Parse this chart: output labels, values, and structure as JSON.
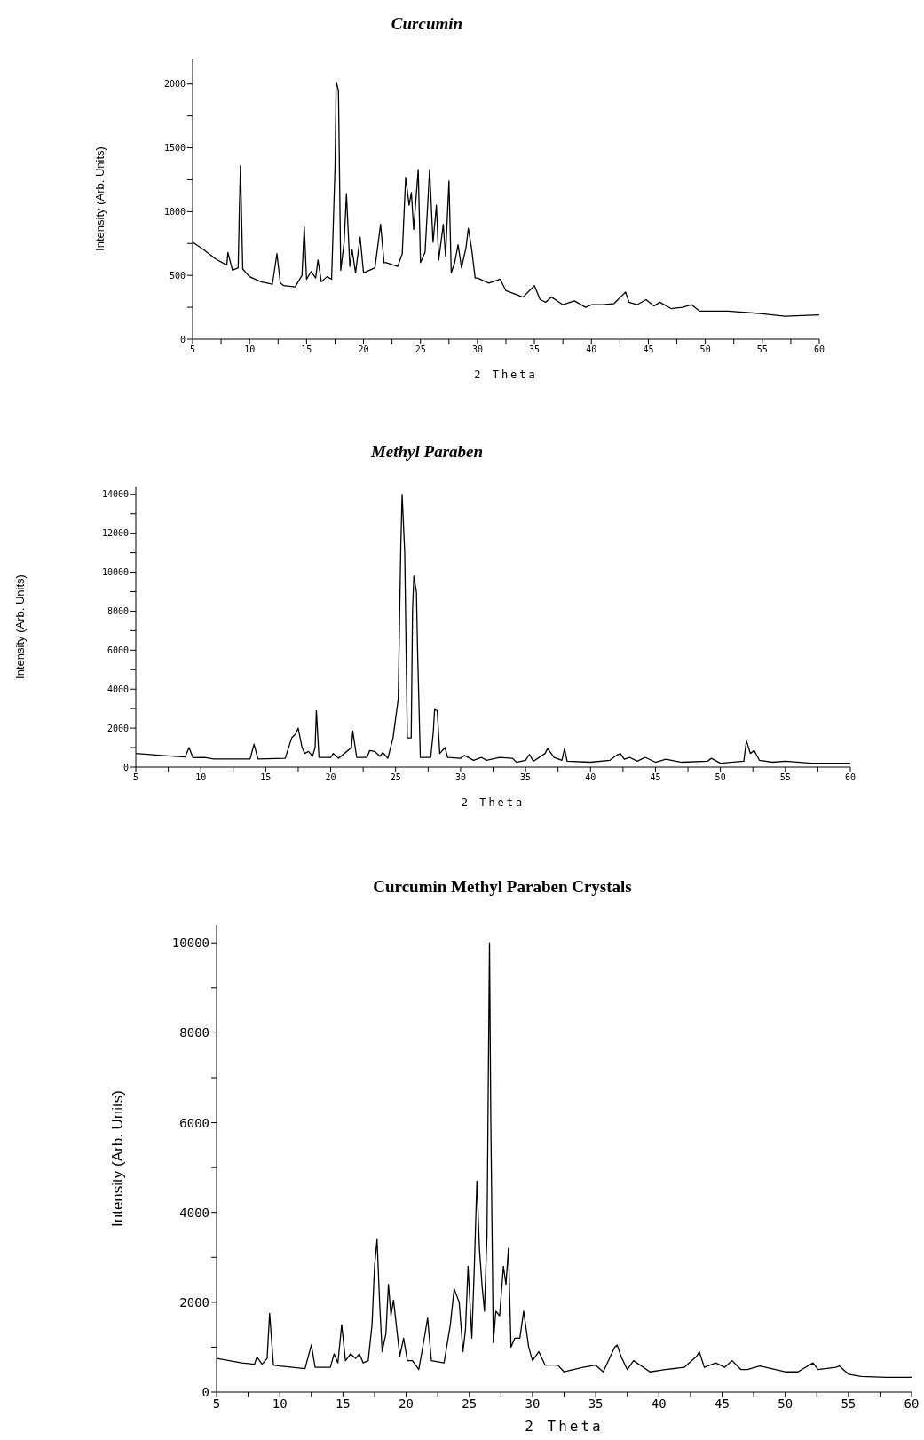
{
  "chart_data": [
    {
      "type": "line",
      "title": "Curcumin",
      "xlabel": "2 Theta",
      "ylabel": "Intensity (Arb. Units)",
      "xlim": [
        5,
        60
      ],
      "ylim": [
        0,
        2200
      ],
      "xticks": [
        5,
        {
          "value": 7.5,
          "label": null
        },
        10,
        {
          "value": 12.5,
          "label": null
        },
        15,
        {
          "value": 17.5,
          "label": null
        },
        20,
        {
          "value": 22.5,
          "label": null
        },
        25,
        {
          "value": 27.5,
          "label": null
        },
        30,
        {
          "value": 32.5,
          "label": null
        },
        35,
        {
          "value": 37.5,
          "label": null
        },
        40,
        {
          "value": 42.5,
          "label": null
        },
        45,
        {
          "value": 47.5,
          "label": null
        },
        50,
        {
          "value": 52.5,
          "label": null
        },
        55,
        {
          "value": 57.5,
          "label": null
        },
        60
      ],
      "yticks": [
        0,
        {
          "value": 250,
          "label": null
        },
        500,
        {
          "value": 750,
          "label": null
        },
        1000,
        {
          "value": 1250,
          "label": null
        },
        1500,
        {
          "value": 1750,
          "label": null
        },
        2000
      ],
      "marker": "none",
      "line_style": "solid",
      "series": [
        {
          "color": "#000000",
          "x": [
            5,
            6,
            7,
            8,
            8.1,
            8.5,
            9,
            9.1,
            9.2,
            9.4,
            10,
            11,
            12,
            12.4,
            12.7,
            13,
            14,
            14.6,
            14.8,
            15,
            15.4,
            15.8,
            16,
            16.3,
            16.8,
            17.2,
            17.5,
            17.6,
            17.8,
            18,
            18.3,
            18.5,
            18.8,
            19,
            19.3,
            19.7,
            20,
            21,
            21.5,
            21.8,
            22,
            23,
            23.4,
            23.7,
            24,
            24.2,
            24.4,
            24.8,
            25,
            25.4,
            25.8,
            26.1,
            26.4,
            26.6,
            27,
            27.2,
            27.5,
            27.7,
            28,
            28.3,
            28.6,
            29,
            29.2,
            29.5,
            29.8,
            30,
            31,
            32,
            32.5,
            34,
            35,
            35.5,
            36,
            36.5,
            37.5,
            38.5,
            39.5,
            40,
            41,
            42,
            43,
            43.3,
            44,
            44.8,
            45.5,
            46,
            47,
            48,
            48.8,
            49.5,
            52,
            55,
            57,
            60
          ],
          "values": [
            760,
            700,
            630,
            580,
            680,
            540,
            560,
            1000,
            1360,
            550,
            490,
            450,
            430,
            670,
            440,
            420,
            410,
            500,
            880,
            470,
            530,
            480,
            620,
            450,
            490,
            470,
            1350,
            2020,
            1950,
            540,
            760,
            1140,
            570,
            700,
            520,
            800,
            520,
            560,
            900,
            600,
            600,
            570,
            670,
            1270,
            1050,
            1150,
            860,
            1330,
            600,
            680,
            1330,
            760,
            1050,
            620,
            900,
            650,
            1240,
            520,
            600,
            740,
            560,
            720,
            870,
            700,
            480,
            480,
            440,
            470,
            380,
            330,
            420,
            310,
            290,
            330,
            270,
            300,
            250,
            270,
            270,
            280,
            370,
            290,
            270,
            310,
            260,
            290,
            240,
            250,
            270,
            220,
            220,
            200,
            180,
            190
          ]
        }
      ]
    },
    {
      "type": "line",
      "title": "Methyl Paraben",
      "xlabel": "2 Theta",
      "ylabel": "Intensity (Arb. Units)",
      "xlim": [
        5,
        60
      ],
      "ylim": [
        0,
        14400
      ],
      "xticks": [
        5,
        {
          "value": 7.5,
          "label": null
        },
        10,
        {
          "value": 12.5,
          "label": null
        },
        15,
        {
          "value": 17.5,
          "label": null
        },
        20,
        {
          "value": 22.5,
          "label": null
        },
        25,
        {
          "value": 27.5,
          "label": null
        },
        30,
        {
          "value": 32.5,
          "label": null
        },
        35,
        {
          "value": 37.5,
          "label": null
        },
        40,
        {
          "value": 42.5,
          "label": null
        },
        45,
        {
          "value": 47.5,
          "label": null
        },
        50,
        {
          "value": 52.5,
          "label": null
        },
        55,
        {
          "value": 57.5,
          "label": null
        },
        60
      ],
      "yticks": [
        0,
        {
          "value": 1000,
          "label": null
        },
        2000,
        {
          "value": 3000,
          "label": null
        },
        4000,
        {
          "value": 5000,
          "label": null
        },
        6000,
        {
          "value": 7000,
          "label": null
        },
        8000,
        {
          "value": 9000,
          "label": null
        },
        10000,
        {
          "value": 11000,
          "label": null
        },
        12000,
        {
          "value": 13000,
          "label": null
        },
        14000
      ],
      "marker": "none",
      "line_style": "solid",
      "series": [
        {
          "color": "#000000",
          "x": [
            5,
            7,
            8.8,
            9.1,
            9.4,
            10.3,
            11,
            13.8,
            14.1,
            14.4,
            16.5,
            17,
            17.3,
            17.5,
            17.8,
            18,
            18.3,
            18.6,
            18.8,
            18.9,
            19.1,
            20,
            20.2,
            20.6,
            21.6,
            21.7,
            22,
            22.8,
            23,
            23.4,
            23.8,
            24,
            24.4,
            24.8,
            25.2,
            25.4,
            25.5,
            25.7,
            25.9,
            26.2,
            26.3,
            26.4,
            26.6,
            26.7,
            26.9,
            27.7,
            27.9,
            28,
            28.2,
            28.4,
            28.8,
            29,
            30,
            30.3,
            31,
            31.6,
            32,
            33,
            34,
            34.3,
            35,
            35.3,
            35.6,
            36.5,
            36.7,
            37.2,
            37.8,
            38,
            38.2,
            40,
            41.5,
            42,
            42.3,
            42.6,
            43,
            43.6,
            44.2,
            45,
            45.8,
            47,
            49,
            49.3,
            50,
            51.8,
            52,
            52.3,
            52.6,
            53,
            54,
            55,
            57,
            60
          ],
          "values": [
            700,
            600,
            520,
            1000,
            480,
            500,
            420,
            420,
            1180,
            420,
            450,
            1500,
            1700,
            2000,
            1000,
            700,
            800,
            550,
            1000,
            2900,
            500,
            500,
            700,
            450,
            1000,
            1850,
            500,
            500,
            850,
            800,
            550,
            750,
            450,
            1500,
            3500,
            11400,
            14000,
            11000,
            1500,
            1500,
            8000,
            9800,
            9000,
            5700,
            500,
            500,
            1800,
            2950,
            2900,
            700,
            1000,
            500,
            450,
            600,
            350,
            500,
            350,
            500,
            450,
            250,
            350,
            650,
            300,
            700,
            950,
            500,
            350,
            950,
            300,
            250,
            350,
            600,
            700,
            400,
            500,
            300,
            500,
            250,
            400,
            250,
            300,
            450,
            200,
            300,
            1350,
            700,
            850,
            350,
            250,
            300,
            200,
            200
          ]
        }
      ]
    },
    {
      "type": "line",
      "title": "Curcumin Methyl Paraben Crystals",
      "xlabel": "2 Theta",
      "ylabel": "Intensity (Arb. Units)",
      "xlim": [
        5,
        60
      ],
      "ylim": [
        0,
        10400
      ],
      "xticks": [
        5,
        {
          "value": 7.5,
          "label": null
        },
        10,
        {
          "value": 12.5,
          "label": null
        },
        15,
        {
          "value": 17.5,
          "label": null
        },
        20,
        {
          "value": 22.5,
          "label": null
        },
        25,
        {
          "value": 27.5,
          "label": null
        },
        30,
        {
          "value": 32.5,
          "label": null
        },
        35,
        {
          "value": 37.5,
          "label": null
        },
        40,
        {
          "value": 42.5,
          "label": null
        },
        45,
        {
          "value": 47.5,
          "label": null
        },
        50,
        {
          "value": 52.5,
          "label": null
        },
        55,
        {
          "value": 57.5,
          "label": null
        },
        60
      ],
      "yticks": [
        0,
        {
          "value": 1000,
          "label": null
        },
        2000,
        {
          "value": 3000,
          "label": null
        },
        4000,
        {
          "value": 5000,
          "label": null
        },
        6000,
        {
          "value": 7000,
          "label": null
        },
        8000,
        {
          "value": 9000,
          "label": null
        },
        10000
      ],
      "marker": "none",
      "line_style": "solid",
      "series": [
        {
          "color": "#000000",
          "x": [
            5,
            7,
            8,
            8.2,
            8.6,
            9,
            9.2,
            9.5,
            10,
            12,
            12.5,
            12.8,
            14,
            14.3,
            14.6,
            14.9,
            15.2,
            15.6,
            16,
            16.3,
            16.6,
            17,
            17.3,
            17.5,
            17.7,
            17.9,
            18.1,
            18.4,
            18.6,
            18.8,
            19,
            19.5,
            19.8,
            20.1,
            20.5,
            21,
            21.5,
            21.7,
            22,
            23,
            23.5,
            23.8,
            24.2,
            24.5,
            24.7,
            24.9,
            25.2,
            25.4,
            25.6,
            25.8,
            26,
            26.2,
            26.4,
            26.6,
            26.7,
            26.9,
            27.1,
            27.4,
            27.7,
            27.9,
            28.1,
            28.3,
            28.6,
            29,
            29.3,
            29.7,
            30,
            30.5,
            31,
            32,
            32.5,
            34,
            35,
            35.6,
            36.5,
            36.7,
            37,
            37.5,
            38,
            39.3,
            40.5,
            42,
            43,
            43.2,
            43.6,
            44.5,
            45.2,
            45.8,
            46.5,
            47,
            48,
            50,
            51,
            52.2,
            52.6,
            54,
            54.3,
            55,
            56,
            58,
            60
          ],
          "values": [
            750,
            650,
            620,
            780,
            620,
            750,
            1750,
            600,
            580,
            520,
            1050,
            550,
            550,
            850,
            650,
            1500,
            700,
            850,
            750,
            850,
            650,
            700,
            1500,
            2800,
            3400,
            2000,
            900,
            1300,
            2400,
            1700,
            2050,
            800,
            1200,
            700,
            700,
            500,
            1300,
            1650,
            700,
            650,
            1500,
            2300,
            2000,
            900,
            1400,
            2800,
            1200,
            2800,
            4700,
            3200,
            2400,
            1800,
            3500,
            10000,
            6100,
            1100,
            1800,
            1700,
            2800,
            2400,
            3200,
            1000,
            1200,
            1200,
            1800,
            1000,
            700,
            900,
            600,
            600,
            450,
            550,
            600,
            450,
            1000,
            1050,
            800,
            500,
            700,
            450,
            500,
            550,
            800,
            900,
            550,
            650,
            550,
            700,
            500,
            500,
            580,
            450,
            450,
            650,
            500,
            550,
            580,
            400,
            350,
            330,
            330
          ]
        }
      ]
    }
  ]
}
